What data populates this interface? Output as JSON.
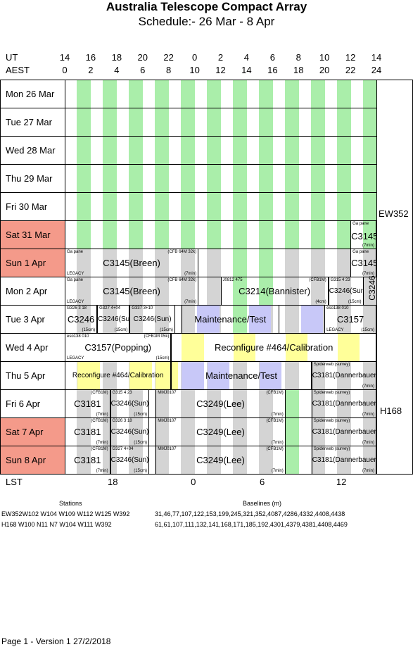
{
  "title": "Australia Telescope Compact Array",
  "subtitle": "Schedule:- 26 Mar - 8  Apr",
  "header": {
    "ut_label": "UT",
    "aest_label": "AEST",
    "ut_hours": [
      "14",
      "16",
      "18",
      "20",
      "22",
      "0",
      "2",
      "4",
      "6",
      "8",
      "10",
      "12",
      "14"
    ],
    "aest_hours": [
      "0",
      "2",
      "4",
      "6",
      "8",
      "10",
      "12",
      "14",
      "16",
      "18",
      "20",
      "22",
      "24"
    ]
  },
  "days": [
    {
      "label": "Mon  26 Mar",
      "weekend": false
    },
    {
      "label": "Tue   27 Mar",
      "weekend": false
    },
    {
      "label": "Wed  28 Mar",
      "weekend": false
    },
    {
      "label": "Thu   29 Mar",
      "weekend": false
    },
    {
      "label": "Fri    30 Mar",
      "weekend": false
    },
    {
      "label": "Sat   31 Mar",
      "weekend": true
    },
    {
      "label": "Sun    1  Apr",
      "weekend": true
    },
    {
      "label": "Mon   2  Apr",
      "weekend": false
    },
    {
      "label": "Tue    3  Apr",
      "weekend": false
    },
    {
      "label": "Wed   4  Apr",
      "weekend": false
    },
    {
      "label": "Thu    5  Apr",
      "weekend": false
    },
    {
      "label": "Fri     6  Apr",
      "weekend": false
    },
    {
      "label": "Sat    7  Apr",
      "weekend": true
    },
    {
      "label": "Sun    8  Apr",
      "weekend": true
    }
  ],
  "configs": {
    "first": "EW352",
    "second": "H168",
    "side_project": "C3246"
  },
  "blocks": {
    "r5_c3145": "C3145",
    "r5_tag": "Ga pane",
    "r5_dur": "(7min)",
    "r6_main": "C3145(Breen)",
    "r6_tag": "Ga pane",
    "r6_legacy": "LEGACY",
    "r6_cfb": "(CFB 64M 32k)",
    "r6_dur": "(7min)",
    "r6_c3145": "C3145",
    "r6_tag2": "Ga pane",
    "r6_dur2": "(7min)",
    "r7_main": "C3145(Breen)",
    "r7_tag": "Ga pane",
    "r7_legacy": "LEGACY",
    "r7_cfb": "(CFB 64M 32k)",
    "r7_dur": "(7min)",
    "r7_mid": "C3214(Bannister)",
    "r7_midtag": "J0812 475",
    "r7_cfb1": "(CFB1M)",
    "r7_4cm": "(4cm)",
    "r7_c3246": "C3246(Sun)",
    "r7_g": "G315 4 23",
    "r7_15": "(15cm)",
    "r8_a": "C3246",
    "r8_atag": "G326 3 18",
    "r8_a15": "(15cm)",
    "r8_b": "C3246(Sun)",
    "r8_btag": "G327 4+04",
    "r8_b15": "(15cm)",
    "r8_c": "C3246(Sun)",
    "r8_ctag": "G337 3+10",
    "r8_c15": "(15cm)",
    "r8_maint": "Maintenance/Test",
    "r8_d": "C3157",
    "r8_dtag": "eso138 010",
    "r8_dleg": "LEGACY",
    "r8_d15": "(15cm)",
    "r9_a": "C3157(Popping)",
    "r9_atag": "eso138 010",
    "r9_aleg": "LEGACY",
    "r9_a15": "(15cm)",
    "r9_cfb": "(CFB1M 05k)",
    "r9_reconf": "Reconfigure #464/Calibration",
    "r10_reconf": "Reconfigure #464/Calibration",
    "r10_maint": "Maintenance/Test",
    "r10_d": "C3181(Dannerbauer)",
    "r10_dtag": "Spiderweb (survey)",
    "r10_d7": "(7min)",
    "r11_a": "C3181",
    "r11_cfb": "(CFB1M)",
    "r11_7": "(7min)",
    "r11_b": "C3246(Sun)",
    "r11_btag": "G315 4 23",
    "r11_b15": "(15cm)",
    "r11_c": "C3249(Lee)",
    "r11_ctag": "MMJ0107",
    "r11_ccfb": "(CFB1M)",
    "r11_c7": "(7min)",
    "r11_d": "C3181(Dannerbauer)",
    "r11_dtag": "Spiderweb (survey)",
    "r11_d7": "(7min)",
    "r12_a": "C3181",
    "r12_cfb": "(CFB1M)",
    "r12_7": "(7min)",
    "r12_b": "C3246(Sun)",
    "r12_btag": "G326 3 18",
    "r12_b15": "(15cm)",
    "r12_c": "C3249(Lee)",
    "r12_ctag": "MMJ0107",
    "r12_ccfb": "(CFB1M)",
    "r12_c7": "(7min)",
    "r12_d": "C3181(Dannerbauer)",
    "r12_dtag": "Spiderweb (survey)",
    "r12_d7": "(7min)",
    "r13_a": "C3181",
    "r13_cfb": "(CFB1M)",
    "r13_7": "(7min)",
    "r13_b": "C3246(Sun)",
    "r13_btag": "G327 4+04",
    "r13_b15": "(15cm)",
    "r13_c": "C3249(Lee)",
    "r13_ctag": "MMJ0107",
    "r13_ccfb": "(CFB1M)",
    "r13_c7": "(7min)",
    "r13_d": "C3181(Dannerbauer)",
    "r13_dtag": "Spiderweb (survey)",
    "r13_d7": "(7min)"
  },
  "lst": {
    "label": "LST",
    "ticks": [
      "18",
      "0",
      "6",
      "12"
    ]
  },
  "stations_header": "Stations",
  "baselines_header": "Baselines (m)",
  "config_rows": [
    {
      "stations": "EW352W102 W104 W109 W112 W125 W392",
      "baselines": "31,46,77,107,122,153,199,245,321,352,4087,4286,4332,4408,4438"
    },
    {
      "stations": "H168  W100 N11 N7 W104 W111 W392",
      "baselines": "61,61,107,111,132,141,168,171,185,192,4301,4379,4381,4408,4469"
    }
  ],
  "footer": "Page 1 - Version 1  27/2/2018",
  "colors": {
    "green": "#aaeeaa",
    "grey": "#d4d4d4",
    "lavender": "#c8c8f8",
    "yellow": "#ffff99",
    "weekend": "#f49a8a"
  }
}
